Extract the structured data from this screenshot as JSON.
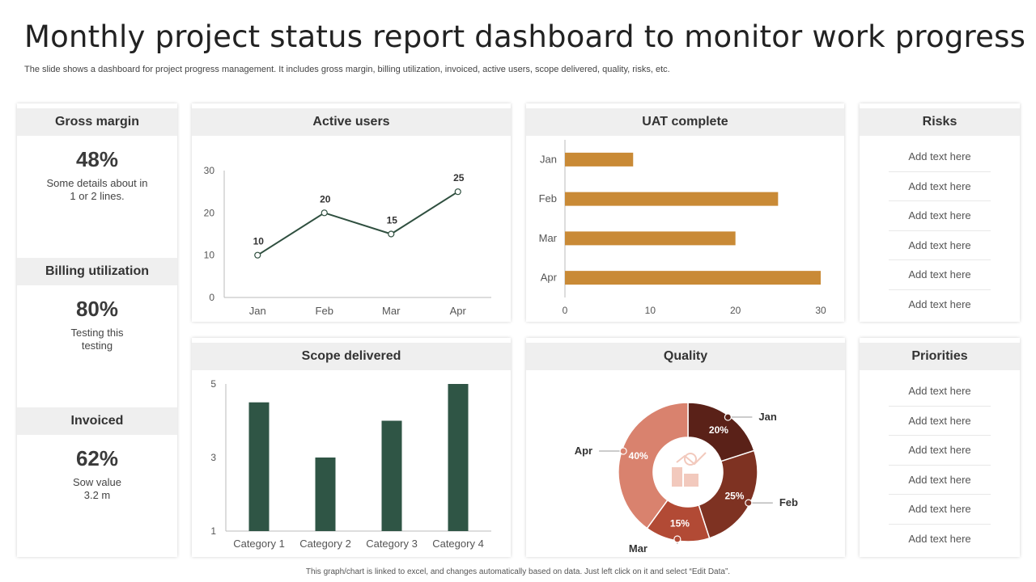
{
  "header": {
    "title": "Monthly project status report dashboard to monitor work progress",
    "subtitle": "The slide shows a dashboard for project progress management. It includes gross margin, billing utilization, invoiced, active users, scope delivered, quality, risks, etc.",
    "footnote": "This graph/chart is linked to excel, and changes automatically based on data. Just left click on it and select “Edit Data”."
  },
  "kpis": [
    {
      "label": "Gross margin",
      "value": "48%",
      "desc1": "Some details about in",
      "desc2": "1 or 2 lines."
    },
    {
      "label": "Billing utilization",
      "value": "80%",
      "desc1": "Testing this",
      "desc2": "testing"
    },
    {
      "label": "Invoiced",
      "value": "62%",
      "desc1": "Sow value",
      "desc2": "3.2 m"
    }
  ],
  "risks": {
    "title": "Risks",
    "items": [
      "Add text here",
      "Add text here",
      "Add text here",
      "Add text here",
      "Add text here",
      "Add text here"
    ]
  },
  "priorities": {
    "title": "Priorities",
    "items": [
      "Add text here",
      "Add text here",
      "Add text here",
      "Add text here",
      "Add text here",
      "Add text here"
    ]
  },
  "colors": {
    "line": "#2f4f3f",
    "bar_h": "#c98a36",
    "bar_v": "#2f5545",
    "donut": [
      "#5a2118",
      "#7e3222",
      "#b24a35",
      "#d9826e"
    ],
    "icon": "#f2c9bd"
  },
  "chart_data": [
    {
      "type": "line",
      "title": "Active users",
      "categories": [
        "Jan",
        "Feb",
        "Mar",
        "Apr"
      ],
      "values": [
        10,
        20,
        15,
        25
      ],
      "data_labels": [
        "10",
        "20",
        "15",
        "25"
      ],
      "ylim": [
        0,
        30
      ],
      "yticks": [
        "0",
        "10",
        "20",
        "30"
      ]
    },
    {
      "type": "bar",
      "orientation": "horizontal",
      "title": "UAT complete",
      "categories": [
        "Jan",
        "Feb",
        "Mar",
        "Apr"
      ],
      "values": [
        8,
        25,
        20,
        30
      ],
      "xlim": [
        0,
        30
      ],
      "xticks": [
        "0",
        "10",
        "20",
        "30"
      ]
    },
    {
      "type": "bar",
      "title": "Scope delivered",
      "categories": [
        "Category 1",
        "Category 2",
        "Category 3",
        "Category 4"
      ],
      "values": [
        4.5,
        3,
        4,
        5
      ],
      "ylim": [
        1,
        5
      ],
      "yticks": [
        "1",
        "3",
        "5"
      ]
    },
    {
      "type": "pie",
      "variant": "donut",
      "title": "Quality",
      "labels": [
        "Jan",
        "Feb",
        "Mar",
        "Apr"
      ],
      "values": [
        20,
        25,
        15,
        40
      ],
      "data_labels": [
        "20%",
        "25%",
        "15%",
        "40%"
      ]
    }
  ]
}
